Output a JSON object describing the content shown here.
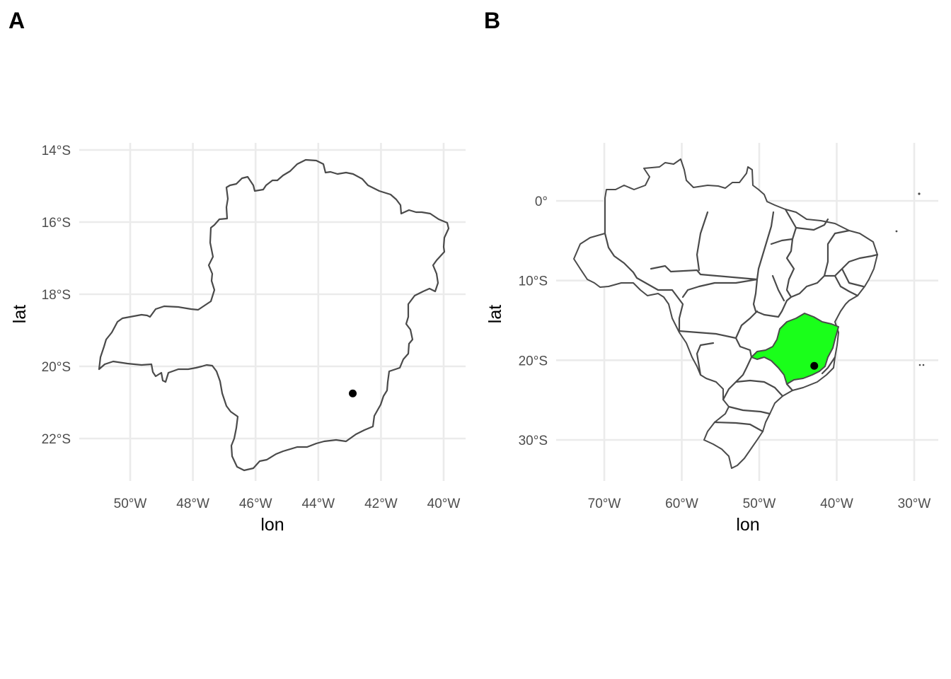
{
  "chart_data": [
    {
      "type": "map",
      "panel_tag": "A",
      "xlabel": "lon",
      "ylabel": "lat",
      "xlim": [
        -51.3,
        -39.3
      ],
      "ylim": [
        -23.0,
        -13.9
      ],
      "x_ticks": [
        -50,
        -48,
        -46,
        -44,
        -42,
        -40
      ],
      "x_tick_labels": [
        "50°W",
        "48°W",
        "46°W",
        "44°W",
        "42°W",
        "40°W"
      ],
      "y_ticks": [
        -14,
        -16,
        -18,
        -20,
        -22
      ],
      "y_tick_labels": [
        "14°S",
        "16°S",
        "18°S",
        "20°S",
        "22°S"
      ],
      "grid": true,
      "point": {
        "lon": -42.9,
        "lat": -20.75
      },
      "outline_color": "#4a4a4a",
      "point_color": "#000000"
    },
    {
      "type": "map",
      "panel_tag": "B",
      "xlabel": "lon",
      "ylabel": "lat",
      "xlim": [
        -75,
        -28.5
      ],
      "ylim": [
        -35,
        6
      ],
      "x_ticks": [
        -70,
        -60,
        -50,
        -40,
        -30
      ],
      "x_tick_labels": [
        "70°W",
        "60°W",
        "50°W",
        "40°W",
        "30°W"
      ],
      "y_ticks": [
        0,
        -10,
        -20,
        -30
      ],
      "y_tick_labels": [
        "0°",
        "10°S",
        "20°S",
        "30°S"
      ],
      "grid": true,
      "highlight_color": "#1aff1a",
      "outline_color": "#4a4a4a",
      "point": {
        "lon": -42.9,
        "lat": -20.7
      },
      "point_color": "#000000"
    }
  ]
}
